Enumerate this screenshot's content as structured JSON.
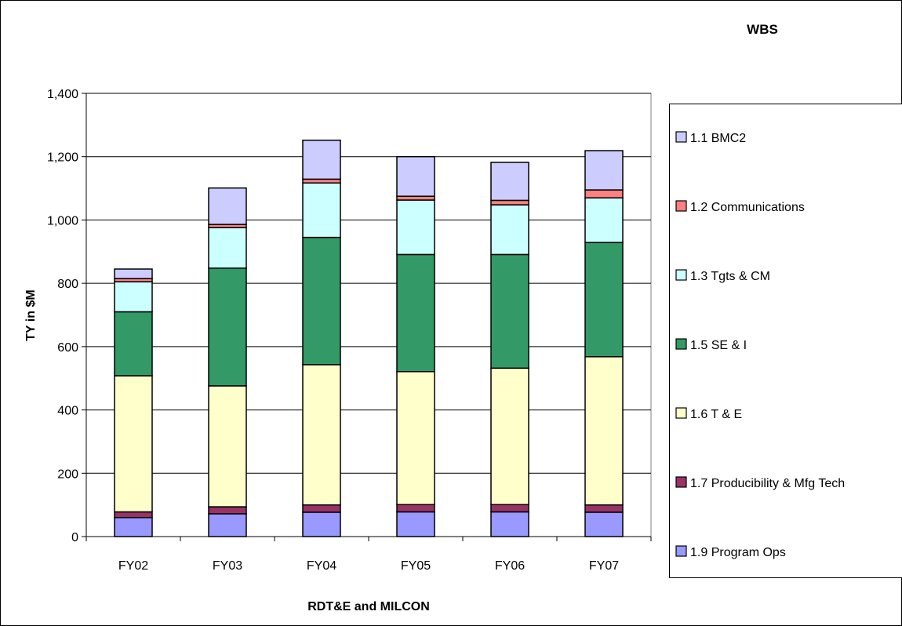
{
  "chart_data": {
    "type": "bar",
    "stacked": true,
    "title": "WBS",
    "xlabel": "RDT&E and MILCON",
    "ylabel": "TY in $M",
    "ylim": [
      0,
      1400
    ],
    "yticks": [
      "0",
      "200",
      "400",
      "600",
      "800",
      "1,000",
      "1,200",
      "1,400"
    ],
    "ytick_values": [
      0,
      200,
      400,
      600,
      800,
      1000,
      1200,
      1400
    ],
    "grid": true,
    "legend_position": "right",
    "categories": [
      "FY02",
      "FY03",
      "FY04",
      "FY05",
      "FY06",
      "FY07"
    ],
    "series": [
      {
        "name": "1.9 Program Ops",
        "color": "#9999ff",
        "values": [
          60,
          72,
          77,
          78,
          78,
          77
        ]
      },
      {
        "name": "1.7 Producibility & Mfg Tech",
        "color": "#993366",
        "values": [
          18,
          22,
          23,
          23,
          23,
          23
        ]
      },
      {
        "name": "1.6 T & E",
        "color": "#ffffcc",
        "values": [
          430,
          382,
          443,
          420,
          431,
          468
        ]
      },
      {
        "name": "1.5 SE & I",
        "color": "#339966",
        "values": [
          202,
          372,
          402,
          370,
          359,
          361
        ]
      },
      {
        "name": "1.3 Tgts & CM",
        "color": "#ccffff",
        "values": [
          95,
          128,
          172,
          172,
          157,
          141
        ]
      },
      {
        "name": "1.2 Communications",
        "color": "#ff8080",
        "values": [
          10,
          10,
          12,
          12,
          14,
          25
        ]
      },
      {
        "name": "1.1 BMC2",
        "color": "#ccccff",
        "values": [
          30,
          115,
          123,
          125,
          120,
          124
        ]
      }
    ]
  }
}
